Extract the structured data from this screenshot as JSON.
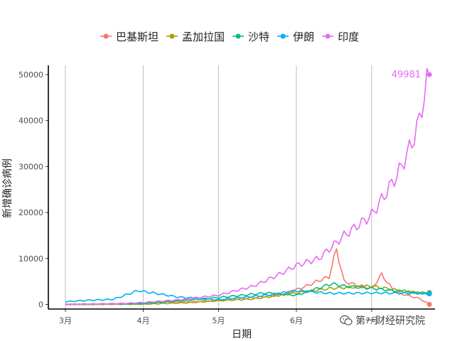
{
  "chart_data": {
    "type": "line",
    "xlabel": "日期",
    "ylabel": "新增确诊病例",
    "x_ticks": [
      "3月",
      "4月",
      "5月",
      "6月",
      "7月"
    ],
    "y_ticks": [
      0,
      10000,
      20000,
      30000,
      40000,
      50000
    ],
    "xlim": [
      "2020-03-01",
      "2020-07-24"
    ],
    "ylim": [
      -1000,
      52000
    ],
    "grid": "vertical-major",
    "legend_position": "top",
    "series": [
      {
        "name": "巴基斯坦",
        "color": "#F8766D",
        "x": [
          "2020-03-01",
          "2020-04-01",
          "2020-04-20",
          "2020-05-01",
          "2020-05-15",
          "2020-05-25",
          "2020-06-01",
          "2020-06-05",
          "2020-06-10",
          "2020-06-14",
          "2020-06-17",
          "2020-06-20",
          "2020-06-25",
          "2020-07-01",
          "2020-07-05",
          "2020-07-10",
          "2020-07-15",
          "2020-07-20",
          "2020-07-24"
        ],
        "values": [
          0,
          300,
          600,
          900,
          1500,
          2000,
          3200,
          4000,
          5200,
          6000,
          12000,
          5000,
          4200,
          3500,
          6500,
          2800,
          2000,
          1300,
          0
        ]
      },
      {
        "name": "孟加拉国",
        "color": "#A3A500",
        "x": [
          "2020-03-01",
          "2020-04-01",
          "2020-04-20",
          "2020-05-01",
          "2020-05-15",
          "2020-06-01",
          "2020-06-15",
          "2020-07-01",
          "2020-07-10",
          "2020-07-20",
          "2020-07-24"
        ],
        "values": [
          0,
          50,
          400,
          800,
          1200,
          2500,
          3500,
          4000,
          3200,
          2500,
          2600
        ]
      },
      {
        "name": "沙特",
        "color": "#00BF7D",
        "x": [
          "2020-03-01",
          "2020-04-01",
          "2020-04-20",
          "2020-05-01",
          "2020-05-20",
          "2020-06-01",
          "2020-06-15",
          "2020-06-20",
          "2020-07-01",
          "2020-07-10",
          "2020-07-20",
          "2020-07-24"
        ],
        "values": [
          0,
          150,
          1000,
          1500,
          2500,
          2000,
          4500,
          4000,
          3500,
          3000,
          2500,
          2300
        ]
      },
      {
        "name": "伊朗",
        "color": "#00B0F6",
        "x": [
          "2020-03-01",
          "2020-03-10",
          "2020-03-20",
          "2020-03-30",
          "2020-04-05",
          "2020-04-15",
          "2020-05-01",
          "2020-05-10",
          "2020-05-20",
          "2020-06-01",
          "2020-06-15",
          "2020-07-01",
          "2020-07-24"
        ],
        "values": [
          600,
          900,
          1100,
          3000,
          2500,
          1600,
          1000,
          1500,
          2000,
          3000,
          2400,
          2500,
          2400
        ]
      },
      {
        "name": "印度",
        "color": "#E76BF3",
        "x": [
          "2020-03-01",
          "2020-03-20",
          "2020-04-01",
          "2020-04-15",
          "2020-05-01",
          "2020-05-15",
          "2020-05-25",
          "2020-06-01",
          "2020-06-10",
          "2020-06-20",
          "2020-06-30",
          "2020-07-01",
          "2020-07-07",
          "2020-07-12",
          "2020-07-17",
          "2020-07-20",
          "2020-07-23",
          "2020-07-24"
        ],
        "values": [
          0,
          100,
          400,
          1000,
          2000,
          4000,
          6500,
          8500,
          10000,
          15000,
          19000,
          19500,
          24500,
          29000,
          35000,
          40000,
          48500,
          49981
        ],
        "end_label": "49981"
      }
    ]
  },
  "watermark": {
    "text": "第一财经研究院"
  }
}
